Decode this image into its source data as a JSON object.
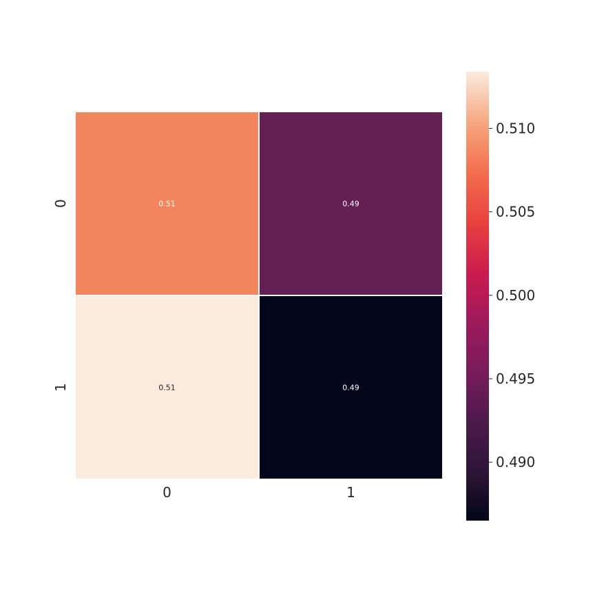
{
  "chart_data": {
    "type": "heatmap",
    "title": "",
    "xlabel": "",
    "ylabel": "",
    "x_categories": [
      "0",
      "1"
    ],
    "y_categories": [
      "0",
      "1"
    ],
    "values": [
      [
        0.5114,
        0.4915
      ],
      [
        0.5133,
        0.4866
      ]
    ],
    "annotations": [
      [
        "0.51",
        "0.49"
      ],
      [
        "0.51",
        "0.49"
      ]
    ],
    "colormap": "rocket",
    "grid": false,
    "colorbar": {
      "range": [
        0.4865,
        0.5134
      ],
      "ticks": [
        "0.490",
        "0.495",
        "0.500",
        "0.505",
        "0.510"
      ],
      "tick_values": [
        0.49,
        0.495,
        0.5,
        0.505,
        0.51
      ],
      "placement": "right"
    },
    "colors": {
      "cell_0_0": "#f3855c",
      "cell_0_1": "#641f53",
      "cell_1_0": "#faebdd",
      "cell_1_1": "#03051a",
      "cell_border": "#ffffff"
    }
  }
}
